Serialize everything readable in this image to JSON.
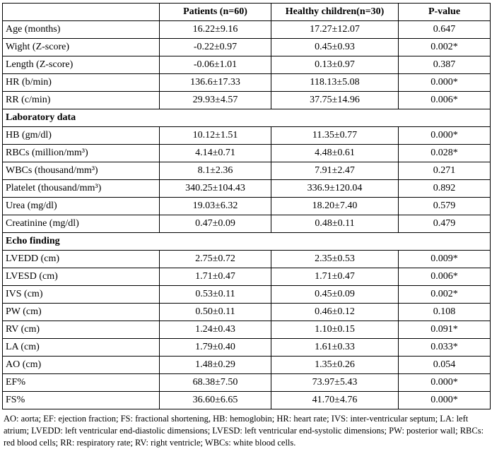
{
  "table": {
    "columns": [
      "",
      "Patients (n=60)",
      "Healthy children(n=30)",
      "P-value"
    ],
    "sections": [
      {
        "header": null,
        "rows": [
          [
            "Age (months)",
            "16.22±9.16",
            "17.27±12.07",
            "0.647"
          ],
          [
            "Wight (Z-score)",
            "-0.22±0.97",
            "0.45±0.93",
            "0.002*"
          ],
          [
            "Length (Z-score)",
            "-0.06±1.01",
            "0.13±0.97",
            "0.387"
          ],
          [
            "HR (b/min)",
            "136.6±17.33",
            "118.13±5.08",
            "0.000*"
          ],
          [
            "RR (c/min)",
            "29.93±4.57",
            "37.75±14.96",
            "0.006*"
          ]
        ]
      },
      {
        "header": "Laboratory data",
        "rows": [
          [
            "HB (gm/dl)",
            "10.12±1.51",
            "11.35±0.77",
            "0.000*"
          ],
          [
            "RBCs (million/mm³)",
            "4.14±0.71",
            "4.48±0.61",
            "0.028*"
          ],
          [
            "WBCs (thousand/mm³)",
            "8.1±2.36",
            "7.91±2.47",
            "0.271"
          ],
          [
            "Platelet (thousand/mm³)",
            "340.25±104.43",
            "336.9±120.04",
            "0.892"
          ],
          [
            "Urea (mg/dl)",
            "19.03±6.32",
            "18.20±7.40",
            "0.579"
          ],
          [
            "Creatinine (mg/dl)",
            "0.47±0.09",
            "0.48±0.11",
            "0.479"
          ]
        ]
      },
      {
        "header": "Echo finding",
        "rows": [
          [
            "LVEDD (cm)",
            "2.75±0.72",
            "2.35±0.53",
            "0.009*"
          ],
          [
            "LVESD (cm)",
            "1.71±0.47",
            "1.71±0.47",
            "0.006*"
          ],
          [
            "IVS (cm)",
            "0.53±0.11",
            "0.45±0.09",
            "0.002*"
          ],
          [
            "PW (cm)",
            "0.50±0.11",
            "0.46±0.12",
            "0.108"
          ],
          [
            "RV (cm)",
            "1.24±0.43",
            "1.10±0.15",
            "0.091*"
          ],
          [
            "LA (cm)",
            "1.79±0.40",
            "1.61±0.33",
            "0.033*"
          ],
          [
            "AO (cm)",
            "1.48±0.29",
            "1.35±0.26",
            "0.054"
          ],
          [
            "EF%",
            "68.38±7.50",
            "73.97±5.43",
            "0.000*"
          ],
          [
            "FS%",
            "36.60±6.65",
            "41.70±4.76",
            "0.000*"
          ]
        ]
      }
    ]
  },
  "footnote": {
    "text": "AO: aorta; EF: ejection fraction; FS: fractional shortening, HB: hemoglobin; HR: heart rate; IVS: inter-ventricular septum; LA: left atrium; LVEDD: left ventricular end-diastolic dimensions; LVESD: left ventricular end-systolic dimensions; PW: posterior wall; RBCs: red blood cells; RR: respiratory rate; RV: right ventricle; WBCs: white blood cells."
  }
}
